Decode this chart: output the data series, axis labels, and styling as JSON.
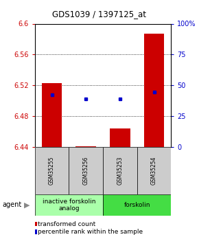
{
  "title": "GDS1039 / 1397125_at",
  "samples": [
    "GSM35255",
    "GSM35256",
    "GSM35253",
    "GSM35254"
  ],
  "bar_values": [
    6.523,
    6.441,
    6.464,
    6.587
  ],
  "bar_base": 6.44,
  "blue_dot_values": [
    6.508,
    6.502,
    6.502,
    6.511
  ],
  "ylim": [
    6.44,
    6.6
  ],
  "yticks_left": [
    6.44,
    6.48,
    6.52,
    6.56,
    6.6
  ],
  "yticks_right": [
    0,
    25,
    50,
    75,
    100
  ],
  "bar_color": "#cc0000",
  "dot_color": "#0000cc",
  "agent_groups": [
    {
      "label": "inactive forskolin\nanalog",
      "color": "#aaffaa",
      "span": [
        0,
        2
      ]
    },
    {
      "label": "forskolin",
      "color": "#44dd44",
      "span": [
        2,
        4
      ]
    }
  ],
  "legend_items": [
    {
      "color": "#cc0000",
      "label": "transformed count"
    },
    {
      "color": "#0000cc",
      "label": "percentile rank within the sample"
    }
  ],
  "bar_width": 0.6,
  "grid_lines": [
    6.48,
    6.52,
    6.56
  ],
  "sample_bg": "#cccccc",
  "sample_label_fontsize": 5.5,
  "agent_label_fontsize": 6.5,
  "legend_fontsize": 6.5,
  "title_fontsize": 8.5
}
